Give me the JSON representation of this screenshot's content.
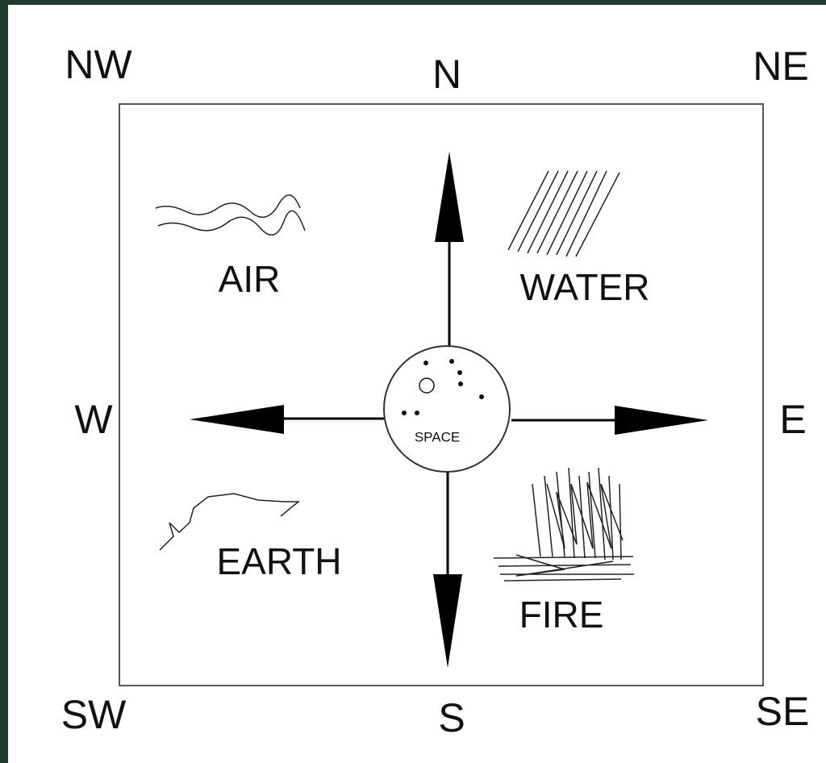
{
  "directions": [
    "NW",
    "N",
    "NE",
    "W",
    "E",
    "SW",
    "S",
    "SE"
  ],
  "elements": [
    "AIR",
    "WATER",
    "EARTH",
    "FIRE"
  ],
  "center": "SPACE"
}
